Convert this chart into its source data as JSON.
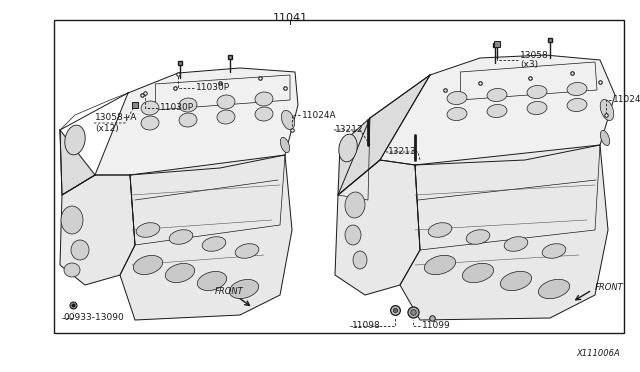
{
  "bg_color": "#ffffff",
  "line_color": "#1a1a1a",
  "text_color": "#1a1a1a",
  "fig_width": 6.4,
  "fig_height": 3.72,
  "dpi": 100,
  "diagram_code": "X111006A",
  "top_label": "11041",
  "border": [
    0.085,
    0.055,
    0.975,
    0.895
  ]
}
